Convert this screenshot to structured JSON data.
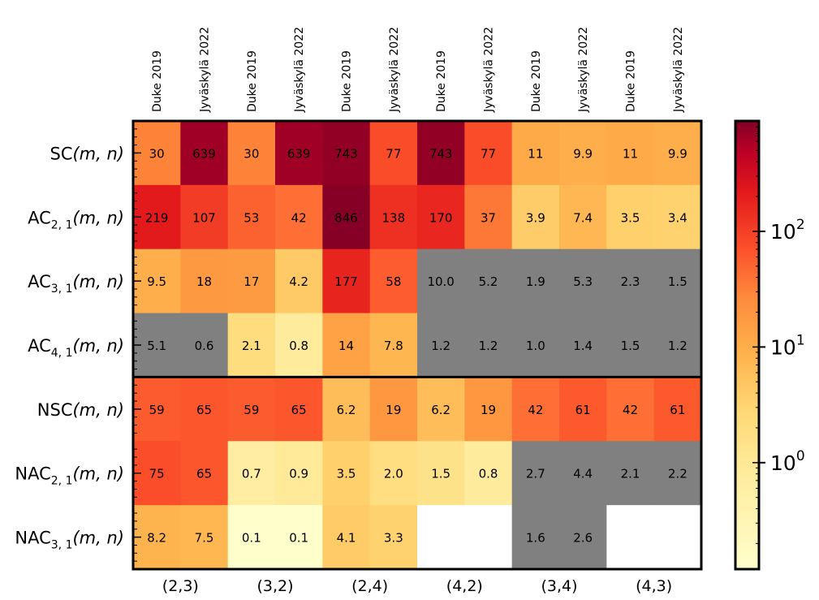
{
  "chart_data": {
    "type": "heatmap",
    "color_scale": "log",
    "colormap": "YlOrRd",
    "missing_color": "#808080",
    "column_labels": [
      "Duke 2019",
      "Jyväskylä 2022",
      "Duke 2019",
      "Jyväskylä 2022",
      "Duke 2019",
      "Jyväskylä 2022",
      "Duke 2019",
      "Jyväskylä 2022",
      "Duke 2019",
      "Jyväskylä 2022",
      "Duke 2019",
      "Jyväskylä 2022"
    ],
    "column_groups": [
      "(2,3)",
      "(3,2)",
      "(2,4)",
      "(4,2)",
      "(3,4)",
      "(4,3)"
    ],
    "rows": [
      {
        "base": "SC",
        "sub": "",
        "args": "(m, n)"
      },
      {
        "base": "AC",
        "sub": "2, 1",
        "args": "(m, n)"
      },
      {
        "base": "AC",
        "sub": "3, 1",
        "args": "(m, n)"
      },
      {
        "base": "AC",
        "sub": "4, 1",
        "args": "(m, n)"
      },
      {
        "base": "NSC",
        "sub": "",
        "args": "(m, n)"
      },
      {
        "base": "NAC",
        "sub": "2, 1",
        "args": "(m, n)"
      },
      {
        "base": "NAC",
        "sub": "3, 1",
        "args": "(m, n)"
      }
    ],
    "cells": [
      [
        {
          "t": "30",
          "v": 30,
          "s": "c"
        },
        {
          "t": "639",
          "v": 639,
          "s": "c"
        },
        {
          "t": "30",
          "v": 30,
          "s": "c"
        },
        {
          "t": "639",
          "v": 639,
          "s": "c"
        },
        {
          "t": "743",
          "v": 743,
          "s": "c"
        },
        {
          "t": "77",
          "v": 77,
          "s": "c"
        },
        {
          "t": "743",
          "v": 743,
          "s": "c"
        },
        {
          "t": "77",
          "v": 77,
          "s": "c"
        },
        {
          "t": "11",
          "v": 11,
          "s": "c"
        },
        {
          "t": "9.9",
          "v": 9.9,
          "s": "c"
        },
        {
          "t": "11",
          "v": 11,
          "s": "c"
        },
        {
          "t": "9.9",
          "v": 9.9,
          "s": "c"
        }
      ],
      [
        {
          "t": "219",
          "v": 219,
          "s": "c"
        },
        {
          "t": "107",
          "v": 107,
          "s": "c"
        },
        {
          "t": "53",
          "v": 53,
          "s": "c"
        },
        {
          "t": "42",
          "v": 42,
          "s": "c"
        },
        {
          "t": "846",
          "v": 846,
          "s": "c"
        },
        {
          "t": "138",
          "v": 138,
          "s": "c"
        },
        {
          "t": "170",
          "v": 170,
          "s": "c"
        },
        {
          "t": "37",
          "v": 37,
          "s": "c"
        },
        {
          "t": "3.9",
          "v": 3.9,
          "s": "c"
        },
        {
          "t": "7.4",
          "v": 7.4,
          "s": "c"
        },
        {
          "t": "3.5",
          "v": 3.5,
          "s": "c"
        },
        {
          "t": "3.4",
          "v": 3.4,
          "s": "c"
        }
      ],
      [
        {
          "t": "9.5",
          "v": 9.5,
          "s": "c"
        },
        {
          "t": "18",
          "v": 18,
          "s": "c"
        },
        {
          "t": "17",
          "v": 17,
          "s": "c"
        },
        {
          "t": "4.2",
          "v": 4.2,
          "s": "c"
        },
        {
          "t": "177",
          "v": 177,
          "s": "c"
        },
        {
          "t": "58",
          "v": 58,
          "s": "c"
        },
        {
          "t": "10.0",
          "v": 10.0,
          "s": "g"
        },
        {
          "t": "5.2",
          "v": 5.2,
          "s": "g"
        },
        {
          "t": "1.9",
          "v": 1.9,
          "s": "g"
        },
        {
          "t": "5.3",
          "v": 5.3,
          "s": "g"
        },
        {
          "t": "2.3",
          "v": 2.3,
          "s": "g"
        },
        {
          "t": "1.5",
          "v": 1.5,
          "s": "g"
        }
      ],
      [
        {
          "t": "5.1",
          "v": 5.1,
          "s": "g"
        },
        {
          "t": "0.6",
          "v": 0.6,
          "s": "g"
        },
        {
          "t": "2.1",
          "v": 2.1,
          "s": "c"
        },
        {
          "t": "0.8",
          "v": 0.8,
          "s": "c"
        },
        {
          "t": "14",
          "v": 14,
          "s": "c"
        },
        {
          "t": "7.8",
          "v": 7.8,
          "s": "c"
        },
        {
          "t": "1.2",
          "v": 1.2,
          "s": "g"
        },
        {
          "t": "1.2",
          "v": 1.2,
          "s": "g"
        },
        {
          "t": "1.0",
          "v": 1.0,
          "s": "g"
        },
        {
          "t": "1.4",
          "v": 1.4,
          "s": "g"
        },
        {
          "t": "1.5",
          "v": 1.5,
          "s": "g"
        },
        {
          "t": "1.2",
          "v": 1.2,
          "s": "g"
        }
      ],
      [
        {
          "t": "59",
          "v": 59,
          "s": "c"
        },
        {
          "t": "65",
          "v": 65,
          "s": "c"
        },
        {
          "t": "59",
          "v": 59,
          "s": "c"
        },
        {
          "t": "65",
          "v": 65,
          "s": "c"
        },
        {
          "t": "6.2",
          "v": 6.2,
          "s": "c"
        },
        {
          "t": "19",
          "v": 19,
          "s": "c"
        },
        {
          "t": "6.2",
          "v": 6.2,
          "s": "c"
        },
        {
          "t": "19",
          "v": 19,
          "s": "c"
        },
        {
          "t": "42",
          "v": 42,
          "s": "c"
        },
        {
          "t": "61",
          "v": 61,
          "s": "c"
        },
        {
          "t": "42",
          "v": 42,
          "s": "c"
        },
        {
          "t": "61",
          "v": 61,
          "s": "c"
        }
      ],
      [
        {
          "t": "75",
          "v": 75,
          "s": "c"
        },
        {
          "t": "65",
          "v": 65,
          "s": "c"
        },
        {
          "t": "0.7",
          "v": 0.7,
          "s": "c"
        },
        {
          "t": "0.9",
          "v": 0.9,
          "s": "c"
        },
        {
          "t": "3.5",
          "v": 3.5,
          "s": "c"
        },
        {
          "t": "2.0",
          "v": 2.0,
          "s": "c"
        },
        {
          "t": "1.5",
          "v": 1.5,
          "s": "c"
        },
        {
          "t": "0.8",
          "v": 0.8,
          "s": "c"
        },
        {
          "t": "2.7",
          "v": 2.7,
          "s": "g"
        },
        {
          "t": "4.4",
          "v": 4.4,
          "s": "g"
        },
        {
          "t": "2.1",
          "v": 2.1,
          "s": "g"
        },
        {
          "t": "2.2",
          "v": 2.2,
          "s": "g"
        }
      ],
      [
        {
          "t": "8.2",
          "v": 8.2,
          "s": "c"
        },
        {
          "t": "7.5",
          "v": 7.5,
          "s": "c"
        },
        {
          "t": "0.1",
          "v": 0.1,
          "s": "c"
        },
        {
          "t": "0.1",
          "v": 0.1,
          "s": "c"
        },
        {
          "t": "4.1",
          "v": 4.1,
          "s": "c"
        },
        {
          "t": "3.3",
          "v": 3.3,
          "s": "c"
        },
        {
          "t": "",
          "v": null,
          "s": "e"
        },
        {
          "t": "",
          "v": null,
          "s": "e"
        },
        {
          "t": "1.6",
          "v": 1.6,
          "s": "g"
        },
        {
          "t": "2.6",
          "v": 2.6,
          "s": "g"
        },
        {
          "t": "",
          "v": null,
          "s": "e"
        },
        {
          "t": "",
          "v": null,
          "s": "e"
        }
      ]
    ],
    "colorbar": {
      "range": [
        0.12,
        900
      ],
      "ticks": [
        {
          "value": 1,
          "label_base": "10",
          "label_exp": "0"
        },
        {
          "value": 10,
          "label_base": "10",
          "label_exp": "1"
        },
        {
          "value": 100,
          "label_base": "10",
          "label_exp": "2"
        }
      ]
    },
    "row_separator_after_row": 3
  }
}
